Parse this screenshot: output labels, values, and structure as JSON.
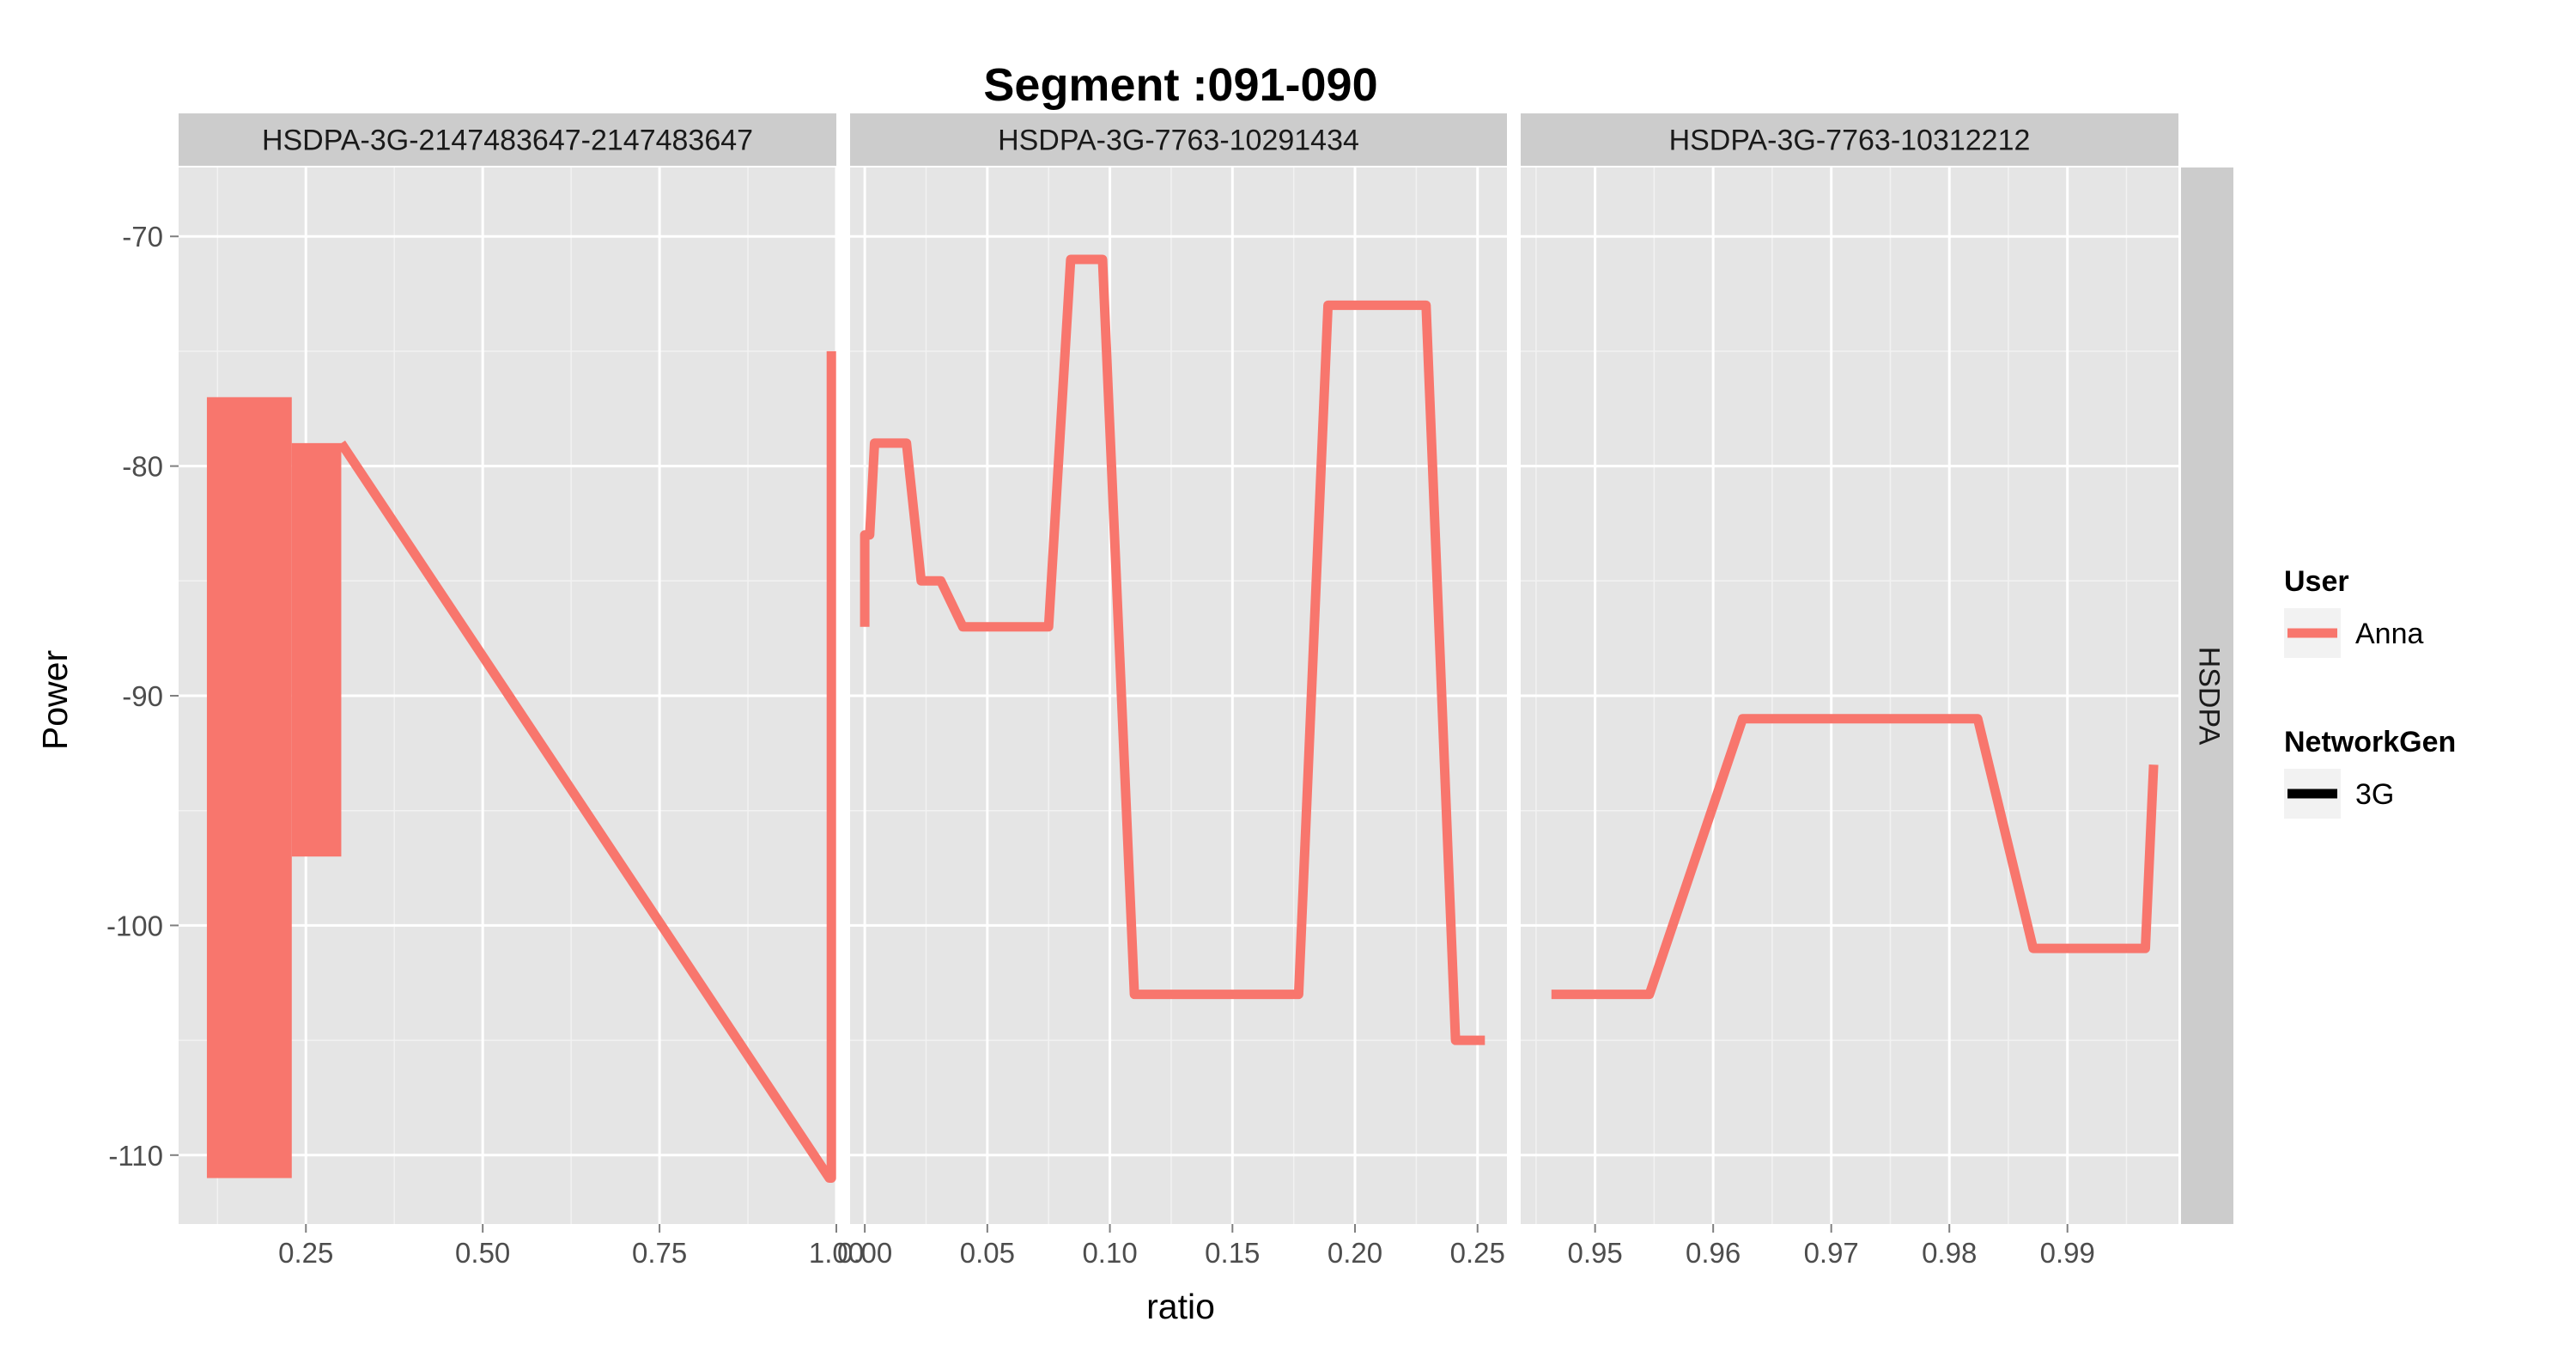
{
  "colors": {
    "panel_bg": "#E5E5E5",
    "strip_bg": "#CCCCCC",
    "grid_major": "#FFFFFF",
    "series_anna": "#F8766D",
    "legend_key_bg": "#F2F2F2",
    "networkgen_3g": "#000000"
  },
  "chart_data": {
    "type": "line",
    "title": "Segment :091-090",
    "xlabel": "ratio",
    "ylabel": "Power",
    "ylim": [
      -113,
      -67
    ],
    "yticks": [
      -70,
      -80,
      -90,
      -100,
      -110
    ],
    "ytick_labels": [
      "-70",
      "-80",
      "-90",
      "-100",
      "-110"
    ],
    "row_strip": "HSDPA",
    "grid": true,
    "legend_position": "right",
    "legend": [
      {
        "title": "User",
        "entries": [
          "Anna"
        ]
      },
      {
        "title": "NetworkGen",
        "entries": [
          "3G"
        ]
      }
    ],
    "panels": [
      {
        "strip": "HSDPA-3G-2147483647-2147483647",
        "xlim": [
          0.07,
          1.0
        ],
        "xticks": [
          0.25,
          0.5,
          0.75,
          1.0
        ],
        "xtick_labels": [
          "0.25",
          "0.50",
          "0.75",
          "1.00"
        ],
        "series": [
          {
            "name": "Anna",
            "dense_oscillation": [
              {
                "x_start": 0.11,
                "x_end": 0.23,
                "y_high": -77,
                "y_low": -111
              },
              {
                "x_start": 0.23,
                "x_end": 0.3,
                "y_high": -79,
                "y_low": -97
              }
            ],
            "points": [
              {
                "x": 0.3,
                "y": -79
              },
              {
                "x": 0.99,
                "y": -111
              },
              {
                "x": 0.993,
                "y": -111
              },
              {
                "x": 0.993,
                "y": -75
              }
            ]
          }
        ]
      },
      {
        "strip": "HSDPA-3G-7763-10291434",
        "xlim": [
          -0.006,
          0.262
        ],
        "xticks": [
          0.0,
          0.05,
          0.1,
          0.15,
          0.2,
          0.25
        ],
        "xtick_labels": [
          "0.00",
          "0.05",
          "0.10",
          "0.15",
          "0.20",
          "0.25"
        ],
        "series": [
          {
            "name": "Anna",
            "points": [
              {
                "x": 0.0,
                "y": -87
              },
              {
                "x": 0.0,
                "y": -83
              },
              {
                "x": 0.002,
                "y": -83
              },
              {
                "x": 0.004,
                "y": -79
              },
              {
                "x": 0.017,
                "y": -79
              },
              {
                "x": 0.023,
                "y": -85
              },
              {
                "x": 0.031,
                "y": -85
              },
              {
                "x": 0.04,
                "y": -87
              },
              {
                "x": 0.075,
                "y": -87
              },
              {
                "x": 0.084,
                "y": -71
              },
              {
                "x": 0.097,
                "y": -71
              },
              {
                "x": 0.11,
                "y": -103
              },
              {
                "x": 0.177,
                "y": -103
              },
              {
                "x": 0.189,
                "y": -73
              },
              {
                "x": 0.229,
                "y": -73
              },
              {
                "x": 0.241,
                "y": -105
              },
              {
                "x": 0.253,
                "y": -105
              }
            ]
          }
        ]
      },
      {
        "strip": "HSDPA-3G-7763-10312212",
        "xlim": [
          0.9437,
          0.9994
        ],
        "xticks": [
          0.95,
          0.96,
          0.97,
          0.98,
          0.99
        ],
        "xtick_labels": [
          "0.95",
          "0.96",
          "0.97",
          "0.98",
          "0.99"
        ],
        "series": [
          {
            "name": "Anna",
            "points": [
              {
                "x": 0.9463,
                "y": -103
              },
              {
                "x": 0.9546,
                "y": -103
              },
              {
                "x": 0.9625,
                "y": -91
              },
              {
                "x": 0.9824,
                "y": -91
              },
              {
                "x": 0.9871,
                "y": -101
              },
              {
                "x": 0.9966,
                "y": -101
              },
              {
                "x": 0.9973,
                "y": -93
              }
            ]
          }
        ]
      }
    ]
  }
}
